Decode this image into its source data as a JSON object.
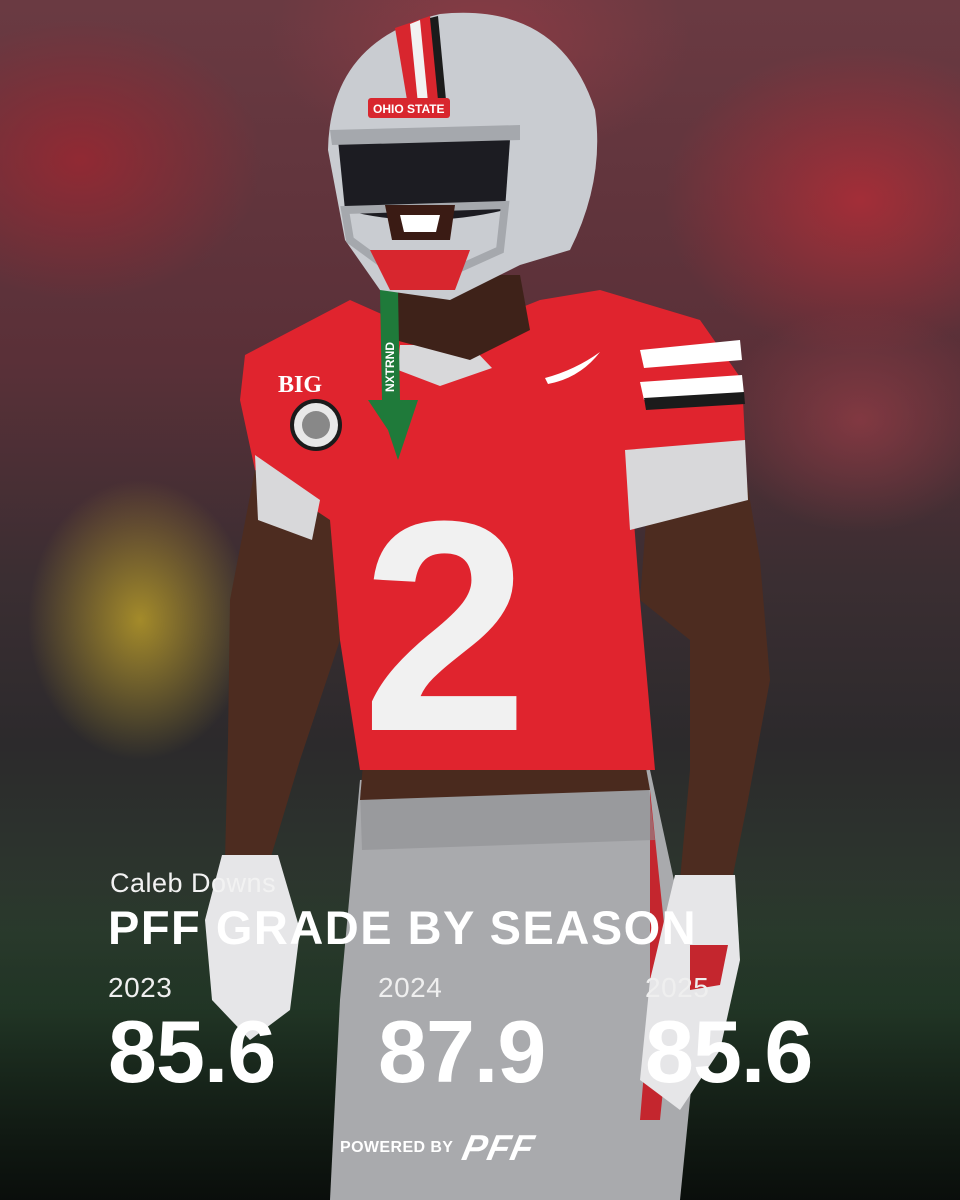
{
  "athlete": {
    "name": "Caleb Downs",
    "jersey_number": "2",
    "helmet_text": "OHIO STATE",
    "patch_text": "BIG",
    "lanyard_text": "NXTRND"
  },
  "headline": "PFF GRADE BY SEASON",
  "grades": [
    {
      "season": "2023",
      "grade": "85.6"
    },
    {
      "season": "2024",
      "grade": "87.9"
    },
    {
      "season": "2025",
      "grade": "85.6"
    }
  ],
  "footer": {
    "powered_by": "POWERED BY",
    "logo": "PFF"
  },
  "colors": {
    "jersey_red": "#e0242e",
    "helmet_silver": "#c9ccd1",
    "text": "#ffffff"
  }
}
